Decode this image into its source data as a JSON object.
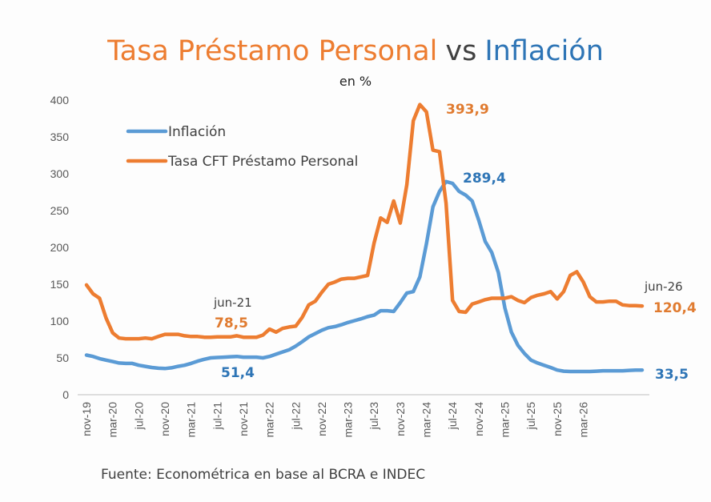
{
  "chart_data": {
    "type": "line",
    "title_part1": "Tasa Préstamo Personal",
    "title_vs": "vs",
    "title_part2": "Inflación",
    "subtitle": "en %",
    "ylim": [
      0,
      400
    ],
    "yticks": [
      0,
      50,
      100,
      150,
      200,
      250,
      300,
      350,
      400
    ],
    "xticks": [
      "nov-19",
      "mar-20",
      "jul-20",
      "nov-20",
      "mar-21",
      "jul-21",
      "nov-21",
      "mar-22",
      "jul-22",
      "nov-22",
      "mar-23",
      "jul-23",
      "nov-23",
      "mar-24",
      "jul-24",
      "nov-24",
      "mar-25",
      "jul-25",
      "nov-25",
      "mar-26"
    ],
    "grid": false,
    "legend_position": "top-left",
    "series": [
      {
        "name": "Inflación",
        "color": "#5B9BD5",
        "values": [
          53.8,
          52.0,
          49.0,
          47.0,
          45.0,
          43.0,
          42.5,
          42.5,
          40.0,
          38.5,
          37.0,
          36.0,
          35.5,
          36.5,
          38.5,
          40.0,
          42.5,
          45.5,
          48.0,
          50.0,
          50.5,
          51.0,
          51.5,
          52.0,
          51.0,
          51.0,
          51.0,
          50.0,
          52.0,
          55.0,
          58.0,
          61.0,
          66.0,
          72.0,
          78.5,
          83.0,
          87.5,
          91.0,
          92.5,
          95.0,
          98.0,
          100.5,
          103.0,
          106.0,
          108.0,
          114.0,
          114.0,
          113.0,
          125.0,
          138.0,
          140.0,
          160.0,
          205.0,
          255.0,
          276.0,
          289.4,
          287.0,
          276.0,
          271.0,
          263.0,
          237.0,
          208.0,
          193.0,
          166.0,
          118.0,
          85.0,
          67.0,
          56.0,
          47.0,
          43.0,
          40.0,
          37.0,
          33.5,
          32.0,
          31.5,
          31.5,
          31.5,
          31.5,
          32.0,
          32.5,
          32.5,
          32.5,
          32.5,
          33.0,
          33.5,
          33.5
        ]
      },
      {
        "name": "Tasa CFT Préstamo Personal",
        "color": "#ED7D31",
        "values": [
          149.0,
          137.0,
          131.0,
          104.0,
          84.0,
          77.0,
          76.0,
          76.0,
          76.0,
          77.0,
          76.0,
          79.0,
          82.0,
          82.0,
          82.0,
          80.0,
          79.0,
          79.0,
          78.0,
          78.0,
          78.5,
          78.5,
          78.5,
          80.0,
          78.0,
          78.0,
          78.0,
          81.0,
          89.0,
          85.0,
          90.0,
          92.0,
          93.0,
          105.0,
          122.0,
          127.0,
          139.0,
          150.0,
          153.0,
          157.0,
          158.0,
          158.0,
          160.0,
          162.0,
          206.0,
          240.0,
          234.0,
          263.0,
          233.0,
          285.0,
          372.0,
          393.9,
          384.0,
          332.0,
          330.0,
          260.0,
          128.0,
          113.0,
          112.0,
          123.0,
          126.0,
          129.0,
          131.0,
          131.0,
          131.0,
          133.0,
          128.0,
          125.0,
          132.0,
          135.0,
          137.0,
          140.0,
          130.0,
          140.0,
          162.0,
          167.0,
          153.0,
          133.0,
          126.0,
          126.0,
          127.0,
          127.0,
          122.0,
          121.0,
          121.0,
          120.4
        ]
      }
    ],
    "annotations": {
      "orange_peak": "393,9",
      "blue_peak": "289,4",
      "jun21_label": "jun-21",
      "orange_jun21": "78,5",
      "blue_jun21": "51,4",
      "jun26_label": "jun-26",
      "orange_end": "120,4",
      "blue_end": "33,5"
    },
    "source": "Fuente: Econométrica en base al BCRA e INDEC"
  },
  "colors": {
    "orange": "#ED7D31",
    "blue": "#5B9BD5",
    "dark_orange": "#E07B30",
    "dark_blue": "#2E75B6"
  }
}
